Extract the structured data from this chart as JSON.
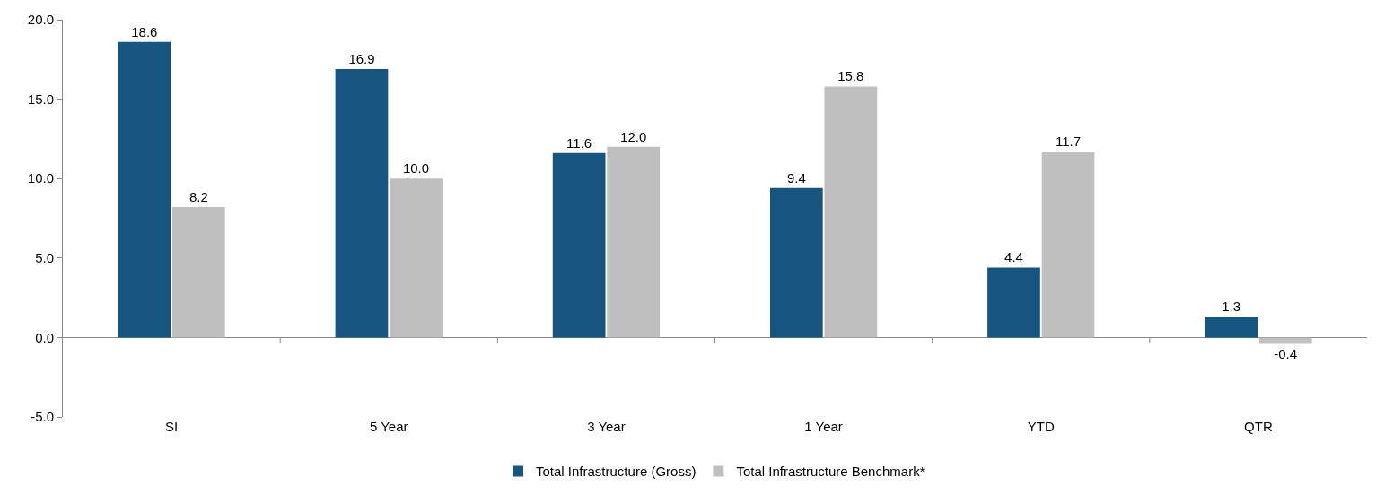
{
  "chart_data": {
    "type": "bar",
    "categories": [
      "SI",
      "5 Year",
      "3 Year",
      "1 Year",
      "YTD",
      "QTR"
    ],
    "series": [
      {
        "name": "Total Infrastructure (Gross)",
        "color": "#15557f",
        "values": [
          18.6,
          16.9,
          11.6,
          9.4,
          4.4,
          1.3
        ],
        "value_labels": [
          "18.6",
          "16.9",
          "11.6",
          "9.4",
          "4.4",
          "1.3"
        ]
      },
      {
        "name": "Total Infrastructure Benchmark*",
        "color": "#bfbfbf",
        "values": [
          8.2,
          10.0,
          12.0,
          15.8,
          11.7,
          -0.4
        ],
        "value_labels": [
          "8.2",
          "10.0",
          "12.0",
          "15.8",
          "11.7",
          "-0.4"
        ]
      }
    ],
    "ylim": [
      -5,
      20
    ],
    "yticks": [
      {
        "value": -5,
        "label": "-5.0"
      },
      {
        "value": 0,
        "label": "0.0"
      },
      {
        "value": 5,
        "label": "5.0"
      },
      {
        "value": 10,
        "label": "10.0"
      },
      {
        "value": 15,
        "label": "15.0"
      },
      {
        "value": 20,
        "label": "20.0"
      }
    ],
    "legend": "bottom"
  }
}
